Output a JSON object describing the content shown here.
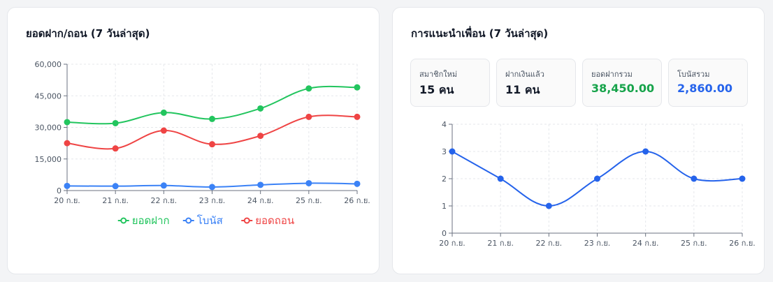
{
  "left_card": {
    "title": "ยอดฝาก/ถอน (7 วันล่าสุด)"
  },
  "right_card": {
    "title": "การแนะนำเพื่อน (7 วันล่าสุด)",
    "stats": [
      {
        "label": "สมาชิกใหม่",
        "value": "15 คน",
        "color": "#111827"
      },
      {
        "label": "ฝากเงินแล้ว",
        "value": "11 คน",
        "color": "#111827"
      },
      {
        "label": "ยอดฝากรวม",
        "value": "38,450.00",
        "color": "#16a34a"
      },
      {
        "label": "โบนัสรวม",
        "value": "2,860.00",
        "color": "#2563eb"
      }
    ]
  },
  "chart_data": [
    {
      "type": "line",
      "categories": [
        "20 ก.ย.",
        "21 ก.ย.",
        "22 ก.ย.",
        "23 ก.ย.",
        "24 ก.ย.",
        "25 ก.ย.",
        "26 ก.ย."
      ],
      "yticks": [
        "0",
        "15,000",
        "30,000",
        "45,000",
        "60,000"
      ],
      "ylim": [
        0,
        60000
      ],
      "grid": true,
      "legend": "bottom",
      "series": [
        {
          "name": "ยอดฝาก",
          "color": "#22c55e",
          "values": [
            32500,
            32000,
            37000,
            34000,
            39000,
            48500,
            49000
          ]
        },
        {
          "name": "โบนัส",
          "color": "#3b82f6",
          "values": [
            2200,
            2100,
            2400,
            1700,
            2700,
            3500,
            3200
          ]
        },
        {
          "name": "ยอดถอน",
          "color": "#ef4444",
          "values": [
            22500,
            20000,
            28500,
            22000,
            26000,
            35000,
            35000
          ]
        }
      ]
    },
    {
      "type": "line",
      "categories": [
        "20 ก.ย.",
        "21 ก.ย.",
        "22 ก.ย.",
        "23 ก.ย.",
        "24 ก.ย.",
        "25 ก.ย.",
        "26 ก.ย."
      ],
      "yticks": [
        "0",
        "1",
        "2",
        "3",
        "4"
      ],
      "ylim": [
        0,
        4
      ],
      "grid": true,
      "legend": "none",
      "series": [
        {
          "color": "#2563eb",
          "values": [
            3,
            2,
            1,
            2,
            3,
            2,
            2
          ]
        }
      ]
    }
  ]
}
